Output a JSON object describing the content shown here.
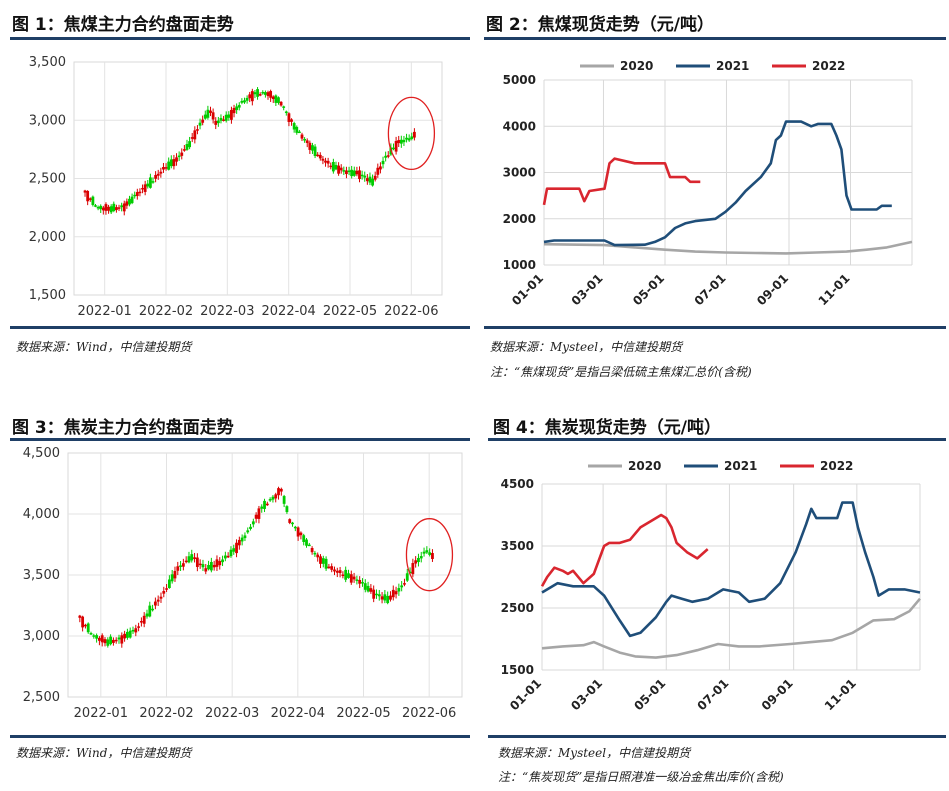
{
  "fig1": {
    "title": "图 1：焦煤主力合约盘面走势",
    "source": "数据来源：Wind，中信建投期货",
    "chart_data": {
      "type": "candlestick",
      "x_labels": [
        "2022-01",
        "2022-02",
        "2022-03",
        "2022-04",
        "2022-05",
        "2022-06"
      ],
      "y_ticks": [
        "1,500",
        "2,000",
        "2,500",
        "3,000",
        "3,500"
      ],
      "ylim": [
        1500,
        3500
      ],
      "trend": [
        [
          0,
          2380
        ],
        [
          5,
          2250
        ],
        [
          10,
          2240
        ],
        [
          15,
          2260
        ],
        [
          17,
          2300
        ],
        [
          20,
          2370
        ],
        [
          25,
          2460
        ],
        [
          30,
          2580
        ],
        [
          35,
          2660
        ],
        [
          40,
          2800
        ],
        [
          45,
          3000
        ],
        [
          48,
          3080
        ],
        [
          50,
          2980
        ],
        [
          55,
          3030
        ],
        [
          60,
          3150
        ],
        [
          65,
          3230
        ],
        [
          70,
          3230
        ],
        [
          75,
          3150
        ],
        [
          80,
          2950
        ],
        [
          85,
          2810
        ],
        [
          90,
          2680
        ],
        [
          95,
          2600
        ],
        [
          100,
          2560
        ],
        [
          105,
          2540
        ],
        [
          110,
          2470
        ],
        [
          115,
          2680
        ],
        [
          120,
          2810
        ],
        [
          125,
          2850
        ],
        [
          126,
          2870
        ]
      ],
      "highlight": "circle"
    }
  },
  "fig2": {
    "title": "图 2：焦煤现货走势（元/吨）",
    "source": "数据来源：Mysteel，中信建投期货",
    "note": "注：“焦煤现货”是指吕梁低硫主焦煤汇总价(含税)",
    "chart_data": {
      "type": "line",
      "x_labels": [
        "01-01",
        "03-01",
        "05-01",
        "07-01",
        "09-01",
        "11-01"
      ],
      "y_ticks": [
        "1000",
        "2000",
        "3000",
        "4000",
        "5000"
      ],
      "ylim": [
        1000,
        5000
      ],
      "series": [
        {
          "name": "2020",
          "color": "#a6a6a6",
          "points": [
            [
              0,
              1450
            ],
            [
              60,
              1430
            ],
            [
              90,
              1380
            ],
            [
              120,
              1330
            ],
            [
              150,
              1290
            ],
            [
              180,
              1270
            ],
            [
              210,
              1260
            ],
            [
              240,
              1250
            ],
            [
              270,
              1270
            ],
            [
              300,
              1290
            ],
            [
              320,
              1330
            ],
            [
              340,
              1380
            ],
            [
              365,
              1500
            ]
          ]
        },
        {
          "name": "2021",
          "color": "#1f4e79",
          "points": [
            [
              0,
              1500
            ],
            [
              10,
              1530
            ],
            [
              60,
              1530
            ],
            [
              70,
              1430
            ],
            [
              100,
              1440
            ],
            [
              110,
              1500
            ],
            [
              120,
              1600
            ],
            [
              130,
              1800
            ],
            [
              140,
              1900
            ],
            [
              150,
              1950
            ],
            [
              170,
              2000
            ],
            [
              180,
              2150
            ],
            [
              190,
              2350
            ],
            [
              200,
              2600
            ],
            [
              215,
              2900
            ],
            [
              225,
              3200
            ],
            [
              230,
              3700
            ],
            [
              235,
              3800
            ],
            [
              240,
              4100
            ],
            [
              255,
              4100
            ],
            [
              265,
              4000
            ],
            [
              272,
              4050
            ],
            [
              285,
              4050
            ],
            [
              290,
              3800
            ],
            [
              295,
              3500
            ],
            [
              300,
              2500
            ],
            [
              305,
              2200
            ],
            [
              330,
              2200
            ],
            [
              335,
              2280
            ],
            [
              345,
              2280
            ]
          ]
        },
        {
          "name": "2022",
          "color": "#d9262f",
          "points": [
            [
              0,
              2300
            ],
            [
              3,
              2650
            ],
            [
              20,
              2650
            ],
            [
              35,
              2650
            ],
            [
              40,
              2380
            ],
            [
              45,
              2600
            ],
            [
              60,
              2650
            ],
            [
              65,
              3200
            ],
            [
              70,
              3300
            ],
            [
              90,
              3200
            ],
            [
              120,
              3200
            ],
            [
              125,
              2900
            ],
            [
              140,
              2900
            ],
            [
              145,
              2800
            ],
            [
              155,
              2800
            ]
          ]
        }
      ]
    }
  },
  "fig3": {
    "title": "图 3：焦炭主力合约盘面走势",
    "source": "数据来源：Wind，中信建投期货",
    "chart_data": {
      "type": "candlestick",
      "x_labels": [
        "2022-01",
        "2022-02",
        "2022-03",
        "2022-04",
        "2022-05",
        "2022-06"
      ],
      "y_ticks": [
        "2,500",
        "3,000",
        "3,500",
        "4,000",
        "4,500"
      ],
      "ylim": [
        2500,
        4500
      ],
      "trend": [
        [
          0,
          3150
        ],
        [
          5,
          3000
        ],
        [
          10,
          2950
        ],
        [
          15,
          2980
        ],
        [
          20,
          3050
        ],
        [
          25,
          3200
        ],
        [
          30,
          3350
        ],
        [
          35,
          3550
        ],
        [
          40,
          3650
        ],
        [
          45,
          3550
        ],
        [
          50,
          3600
        ],
        [
          55,
          3700
        ],
        [
          60,
          3850
        ],
        [
          65,
          4050
        ],
        [
          70,
          4150
        ],
        [
          72,
          4200
        ],
        [
          75,
          3950
        ],
        [
          80,
          3800
        ],
        [
          85,
          3650
        ],
        [
          90,
          3550
        ],
        [
          95,
          3500
        ],
        [
          100,
          3450
        ],
        [
          105,
          3350
        ],
        [
          110,
          3300
        ],
        [
          115,
          3400
        ],
        [
          120,
          3600
        ],
        [
          124,
          3700
        ],
        [
          126,
          3650
        ]
      ],
      "highlight": "circle"
    }
  },
  "fig4": {
    "title": "图 4：焦炭现货走势（元/吨）",
    "source": "数据来源：Mysteel，中信建投期货",
    "note": "注：“焦炭现货”是指日照港准一级冶金焦出库价(含税)",
    "chart_data": {
      "type": "line",
      "x_labels": [
        "01-01",
        "03-01",
        "05-01",
        "07-01",
        "09-01",
        "11-01"
      ],
      "y_ticks": [
        "1500",
        "2500",
        "3500",
        "4500"
      ],
      "ylim": [
        1500,
        4500
      ],
      "series": [
        {
          "name": "2020",
          "color": "#a6a6a6",
          "points": [
            [
              0,
              1850
            ],
            [
              20,
              1880
            ],
            [
              40,
              1900
            ],
            [
              50,
              1950
            ],
            [
              60,
              1880
            ],
            [
              75,
              1780
            ],
            [
              90,
              1720
            ],
            [
              110,
              1700
            ],
            [
              130,
              1740
            ],
            [
              150,
              1820
            ],
            [
              170,
              1920
            ],
            [
              190,
              1880
            ],
            [
              210,
              1880
            ],
            [
              240,
              1920
            ],
            [
              260,
              1950
            ],
            [
              280,
              1980
            ],
            [
              300,
              2100
            ],
            [
              320,
              2300
            ],
            [
              340,
              2320
            ],
            [
              355,
              2450
            ],
            [
              365,
              2650
            ]
          ]
        },
        {
          "name": "2021",
          "color": "#1f4e79",
          "points": [
            [
              0,
              2750
            ],
            [
              15,
              2900
            ],
            [
              30,
              2850
            ],
            [
              50,
              2850
            ],
            [
              60,
              2700
            ],
            [
              75,
              2300
            ],
            [
              85,
              2050
            ],
            [
              95,
              2100
            ],
            [
              110,
              2350
            ],
            [
              120,
              2600
            ],
            [
              125,
              2700
            ],
            [
              135,
              2650
            ],
            [
              145,
              2600
            ],
            [
              160,
              2650
            ],
            [
              175,
              2800
            ],
            [
              190,
              2750
            ],
            [
              200,
              2600
            ],
            [
              215,
              2650
            ],
            [
              230,
              2900
            ],
            [
              245,
              3400
            ],
            [
              255,
              3850
            ],
            [
              260,
              4100
            ],
            [
              265,
              3950
            ],
            [
              285,
              3950
            ],
            [
              290,
              4200
            ],
            [
              300,
              4200
            ],
            [
              305,
              3800
            ],
            [
              312,
              3400
            ],
            [
              320,
              3000
            ],
            [
              325,
              2700
            ],
            [
              335,
              2800
            ],
            [
              350,
              2800
            ],
            [
              365,
              2750
            ]
          ]
        },
        {
          "name": "2022",
          "color": "#d9262f",
          "points": [
            [
              0,
              2850
            ],
            [
              5,
              3000
            ],
            [
              12,
              3150
            ],
            [
              20,
              3100
            ],
            [
              25,
              3050
            ],
            [
              30,
              3100
            ],
            [
              40,
              2900
            ],
            [
              50,
              3050
            ],
            [
              60,
              3500
            ],
            [
              65,
              3550
            ],
            [
              75,
              3550
            ],
            [
              85,
              3600
            ],
            [
              95,
              3800
            ],
            [
              105,
              3900
            ],
            [
              115,
              4000
            ],
            [
              120,
              3950
            ],
            [
              125,
              3800
            ],
            [
              130,
              3550
            ],
            [
              140,
              3400
            ],
            [
              150,
              3300
            ],
            [
              160,
              3450
            ]
          ]
        }
      ]
    }
  }
}
